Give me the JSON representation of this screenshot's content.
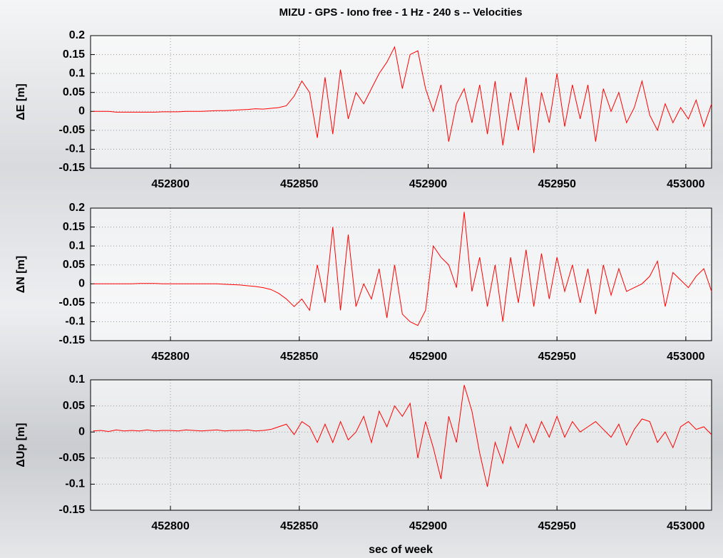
{
  "chart_data": [
    {
      "type": "line",
      "title": "MIZU - GPS - Iono free - 1 Hz - 240 s -- Velocities",
      "y_label": "ΔE [m]",
      "color": "#ff0000",
      "grid": true,
      "xlim": [
        452769,
        453010
      ],
      "xticks": [
        452800,
        452850,
        452900,
        452950,
        453000
      ],
      "ylim": [
        -0.15,
        0.2
      ],
      "yticks": [
        -0.15,
        -0.1,
        -0.05,
        0,
        0.05,
        0.1,
        0.15,
        0.2
      ],
      "x": [
        452770,
        452773,
        452776,
        452779,
        452782,
        452785,
        452788,
        452791,
        452794,
        452797,
        452800,
        452803,
        452806,
        452809,
        452812,
        452815,
        452818,
        452821,
        452824,
        452827,
        452830,
        452833,
        452836,
        452839,
        452842,
        452845,
        452848,
        452851,
        452854,
        452857,
        452860,
        452863,
        452866,
        452869,
        452872,
        452875,
        452878,
        452881,
        452884,
        452887,
        452890,
        452893,
        452896,
        452899,
        452902,
        452905,
        452908,
        452911,
        452914,
        452917,
        452920,
        452923,
        452926,
        452929,
        452932,
        452935,
        452938,
        452941,
        452944,
        452947,
        452950,
        452953,
        452956,
        452959,
        452962,
        452965,
        452968,
        452971,
        452974,
        452977,
        452980,
        452983,
        452986,
        452989,
        452992,
        452995,
        452998,
        453001,
        453004,
        453007,
        453010
      ],
      "values": [
        0,
        0,
        0,
        -0.002,
        -0.002,
        -0.002,
        -0.002,
        -0.002,
        -0.002,
        -0.001,
        -0.001,
        -0.001,
        0,
        0,
        0,
        0.001,
        0.002,
        0.002,
        0.003,
        0.004,
        0.005,
        0.007,
        0.006,
        0.008,
        0.01,
        0.015,
        0.04,
        0.08,
        0.05,
        -0.07,
        0.09,
        -0.06,
        0.11,
        -0.02,
        0.05,
        0.02,
        0.06,
        0.1,
        0.13,
        0.17,
        0.06,
        0.15,
        0.16,
        0.06,
        0.0,
        0.07,
        -0.08,
        0.02,
        0.06,
        -0.03,
        0.07,
        -0.06,
        0.08,
        -0.09,
        0.05,
        -0.05,
        0.09,
        -0.11,
        0.05,
        -0.03,
        0.1,
        -0.04,
        0.07,
        -0.02,
        0.07,
        -0.08,
        0.06,
        0.0,
        0.05,
        -0.03,
        0.01,
        0.08,
        -0.01,
        -0.05,
        0.02,
        -0.03,
        0.01,
        -0.02,
        0.03,
        -0.04,
        0.02
      ]
    },
    {
      "type": "line",
      "y_label": "ΔN [m]",
      "color": "#ff0000",
      "grid": true,
      "xlim": [
        452769,
        453010
      ],
      "xticks": [
        452800,
        452850,
        452900,
        452950,
        453000
      ],
      "ylim": [
        -0.15,
        0.2
      ],
      "yticks": [
        -0.15,
        -0.1,
        -0.05,
        0,
        0.05,
        0.1,
        0.15,
        0.2
      ],
      "x": [
        452770,
        452773,
        452776,
        452779,
        452782,
        452785,
        452788,
        452791,
        452794,
        452797,
        452800,
        452803,
        452806,
        452809,
        452812,
        452815,
        452818,
        452821,
        452824,
        452827,
        452830,
        452833,
        452836,
        452839,
        452842,
        452845,
        452848,
        452851,
        452854,
        452857,
        452860,
        452863,
        452866,
        452869,
        452872,
        452875,
        452878,
        452881,
        452884,
        452887,
        452890,
        452893,
        452896,
        452899,
        452902,
        452905,
        452908,
        452911,
        452914,
        452917,
        452920,
        452923,
        452926,
        452929,
        452932,
        452935,
        452938,
        452941,
        452944,
        452947,
        452950,
        452953,
        452956,
        452959,
        452962,
        452965,
        452968,
        452971,
        452974,
        452977,
        452980,
        452983,
        452986,
        452989,
        452992,
        452995,
        452998,
        453001,
        453004,
        453007,
        453010
      ],
      "values": [
        0,
        0,
        0,
        0,
        0,
        0,
        0.001,
        0.001,
        0.001,
        0,
        0,
        0,
        0,
        0,
        0,
        0,
        0,
        -0.001,
        -0.002,
        -0.003,
        -0.005,
        -0.007,
        -0.01,
        -0.015,
        -0.025,
        -0.04,
        -0.06,
        -0.04,
        -0.07,
        0.05,
        -0.05,
        0.15,
        -0.07,
        0.13,
        -0.06,
        0.0,
        -0.04,
        0.04,
        -0.09,
        0.05,
        -0.08,
        -0.1,
        -0.11,
        -0.07,
        0.1,
        0.07,
        0.05,
        -0.01,
        0.19,
        -0.02,
        0.07,
        -0.06,
        0.05,
        -0.1,
        0.07,
        -0.05,
        0.09,
        -0.06,
        0.08,
        -0.04,
        0.07,
        -0.02,
        0.05,
        -0.05,
        0.04,
        -0.08,
        0.05,
        -0.03,
        0.04,
        -0.02,
        -0.01,
        0.0,
        0.02,
        0.06,
        -0.06,
        0.03,
        0.01,
        -0.01,
        0.02,
        0.04,
        -0.02
      ]
    },
    {
      "type": "line",
      "y_label": "ΔUp [m]",
      "x_label": "sec of week",
      "color": "#ff0000",
      "grid": true,
      "xlim": [
        452769,
        453010
      ],
      "xticks": [
        452800,
        452850,
        452900,
        452950,
        453000
      ],
      "ylim": [
        -0.15,
        0.1
      ],
      "yticks": [
        -0.15,
        -0.1,
        -0.05,
        0,
        0.05,
        0.1
      ],
      "x": [
        452770,
        452773,
        452776,
        452779,
        452782,
        452785,
        452788,
        452791,
        452794,
        452797,
        452800,
        452803,
        452806,
        452809,
        452812,
        452815,
        452818,
        452821,
        452824,
        452827,
        452830,
        452833,
        452836,
        452839,
        452842,
        452845,
        452848,
        452851,
        452854,
        452857,
        452860,
        452863,
        452866,
        452869,
        452872,
        452875,
        452878,
        452881,
        452884,
        452887,
        452890,
        452893,
        452896,
        452899,
        452902,
        452905,
        452908,
        452911,
        452914,
        452917,
        452920,
        452923,
        452926,
        452929,
        452932,
        452935,
        452938,
        452941,
        452944,
        452947,
        452950,
        452953,
        452956,
        452959,
        452962,
        452965,
        452968,
        452971,
        452974,
        452977,
        452980,
        452983,
        452986,
        452989,
        452992,
        452995,
        452998,
        453001,
        453004,
        453007,
        453010
      ],
      "values": [
        0.002,
        0.003,
        0.001,
        0.004,
        0.002,
        0.003,
        0.002,
        0.004,
        0.002,
        0.003,
        0.003,
        0.002,
        0.004,
        0.003,
        0.002,
        0.003,
        0.004,
        0.002,
        0.003,
        0.003,
        0.004,
        0.002,
        0.003,
        0.005,
        0.01,
        0.015,
        -0.005,
        0.02,
        0.01,
        -0.02,
        0.015,
        -0.02,
        0.02,
        -0.015,
        0.0,
        0.03,
        -0.02,
        0.04,
        0.01,
        0.05,
        0.03,
        0.055,
        -0.05,
        0.02,
        -0.03,
        -0.09,
        0.03,
        -0.02,
        0.09,
        0.04,
        -0.04,
        -0.105,
        -0.02,
        -0.06,
        0.01,
        -0.03,
        0.015,
        -0.02,
        0.02,
        -0.01,
        0.03,
        -0.01,
        0.02,
        0.0,
        0.01,
        0.02,
        0.005,
        -0.01,
        0.015,
        -0.025,
        0.005,
        0.025,
        0.02,
        -0.02,
        0.0,
        -0.03,
        0.01,
        0.02,
        0.005,
        0.01,
        -0.005
      ]
    }
  ]
}
